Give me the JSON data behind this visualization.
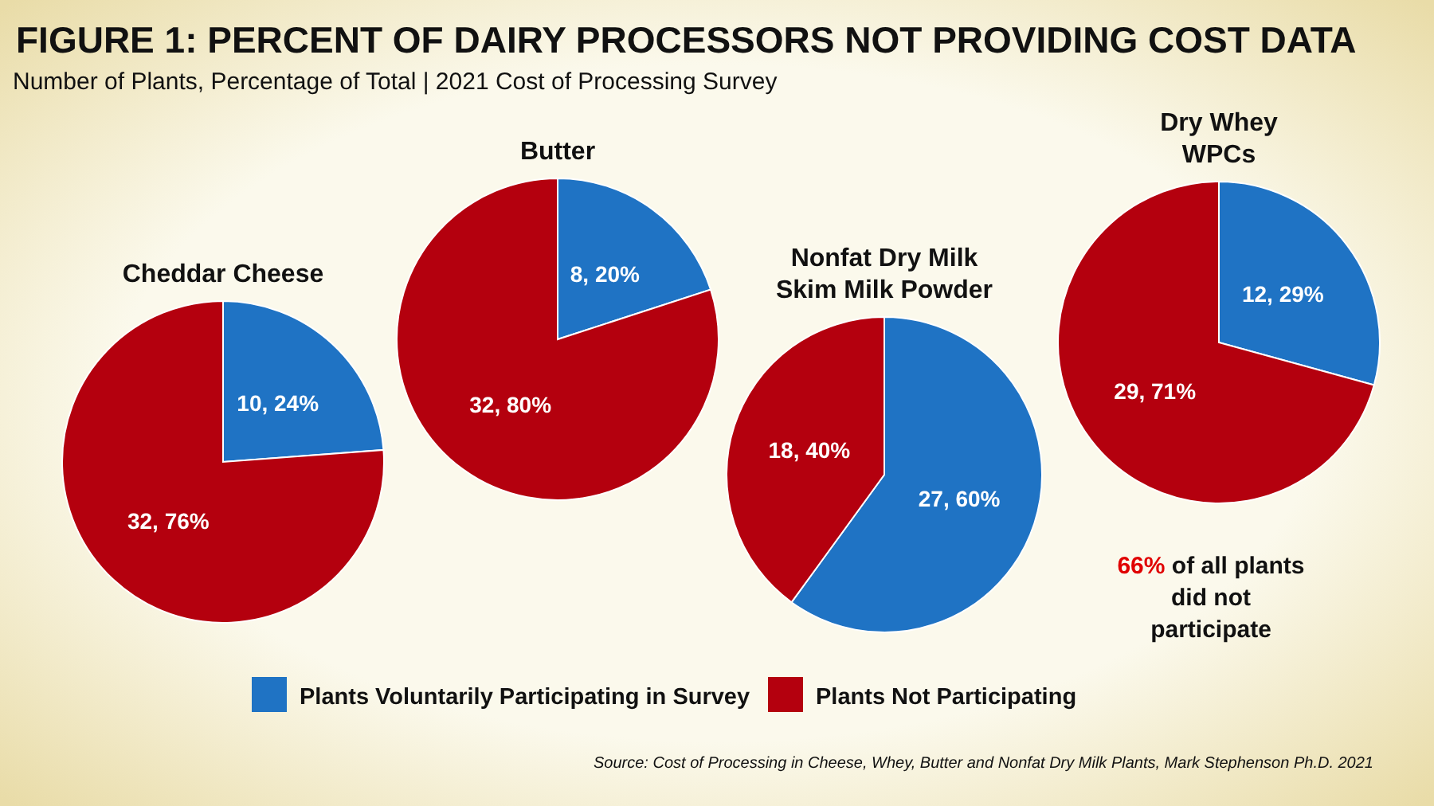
{
  "chart_data": [
    {
      "type": "other",
      "title": "FIGURE 1: PERCENT OF DAIRY PROCESSORS NOT PROVIDING COST DATA",
      "subtitle": "Number of Plants, Percentage of Total | 2021 Cost of Processing Survey",
      "annotations": [
        "Source: Cost of Processing in Cheese, Whey, Butter and Nonfat Dry Milk Plants, Mark Stephenson Ph.D. 2021"
      ]
    },
    {
      "type": "pie",
      "title": "Cheddar Cheese",
      "categories": [
        "Plants Voluntarily Participating in Survey",
        "Plants Not Participating"
      ],
      "values": [
        10,
        32
      ],
      "value_labels": [
        "10, 24%",
        "32, 76%"
      ],
      "colors": [
        "#1f73c4",
        "#b4000e"
      ],
      "legend": "bottom"
    },
    {
      "type": "pie",
      "title": "Butter",
      "values": [
        8,
        32
      ],
      "value_labels": [
        "8, 20%",
        "32, 80%"
      ],
      "colors": [
        "#1f73c4",
        "#b4000e"
      ]
    },
    {
      "type": "pie",
      "title": "Nonfat Dry Milk\nSkim Milk Powder",
      "values": [
        27,
        18
      ],
      "value_labels": [
        "27, 60%",
        "18, 40%"
      ],
      "colors": [
        "#1f73c4",
        "#b4000e"
      ]
    },
    {
      "type": "pie",
      "title": "Dry Whey\nWPCs",
      "values": [
        12,
        29
      ],
      "value_labels": [
        "12, 29%",
        "29, 71%"
      ],
      "colors": [
        "#1f73c4",
        "#b4000e"
      ],
      "annotations": [
        "66% of all plants\ndid not\nparticipate"
      ]
    }
  ]
}
